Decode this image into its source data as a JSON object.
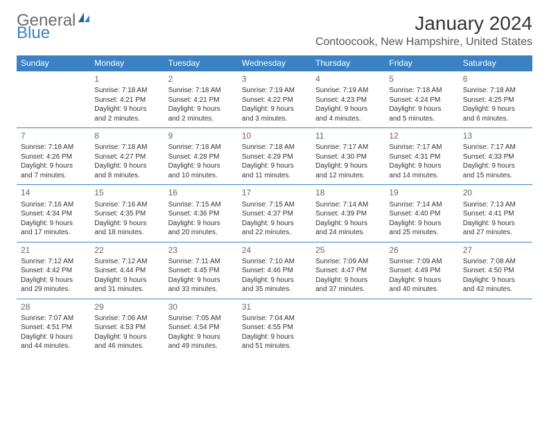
{
  "logo": {
    "word1": "General",
    "word2": "Blue"
  },
  "title": "January 2024",
  "location": "Contoocook, New Hampshire, United States",
  "colors": {
    "header_bg": "#3b82c4",
    "header_text": "#ffffff",
    "border": "#3b82c4",
    "text": "#333333"
  },
  "day_headers": [
    "Sunday",
    "Monday",
    "Tuesday",
    "Wednesday",
    "Thursday",
    "Friday",
    "Saturday"
  ],
  "weeks": [
    [
      null,
      {
        "n": "1",
        "sr": "7:18 AM",
        "ss": "4:21 PM",
        "dl": "9 hours and 2 minutes."
      },
      {
        "n": "2",
        "sr": "7:18 AM",
        "ss": "4:21 PM",
        "dl": "9 hours and 2 minutes."
      },
      {
        "n": "3",
        "sr": "7:19 AM",
        "ss": "4:22 PM",
        "dl": "9 hours and 3 minutes."
      },
      {
        "n": "4",
        "sr": "7:19 AM",
        "ss": "4:23 PM",
        "dl": "9 hours and 4 minutes."
      },
      {
        "n": "5",
        "sr": "7:18 AM",
        "ss": "4:24 PM",
        "dl": "9 hours and 5 minutes."
      },
      {
        "n": "6",
        "sr": "7:18 AM",
        "ss": "4:25 PM",
        "dl": "9 hours and 6 minutes."
      }
    ],
    [
      {
        "n": "7",
        "sr": "7:18 AM",
        "ss": "4:26 PM",
        "dl": "9 hours and 7 minutes."
      },
      {
        "n": "8",
        "sr": "7:18 AM",
        "ss": "4:27 PM",
        "dl": "9 hours and 8 minutes."
      },
      {
        "n": "9",
        "sr": "7:18 AM",
        "ss": "4:28 PM",
        "dl": "9 hours and 10 minutes."
      },
      {
        "n": "10",
        "sr": "7:18 AM",
        "ss": "4:29 PM",
        "dl": "9 hours and 11 minutes."
      },
      {
        "n": "11",
        "sr": "7:17 AM",
        "ss": "4:30 PM",
        "dl": "9 hours and 12 minutes."
      },
      {
        "n": "12",
        "sr": "7:17 AM",
        "ss": "4:31 PM",
        "dl": "9 hours and 14 minutes."
      },
      {
        "n": "13",
        "sr": "7:17 AM",
        "ss": "4:33 PM",
        "dl": "9 hours and 15 minutes."
      }
    ],
    [
      {
        "n": "14",
        "sr": "7:16 AM",
        "ss": "4:34 PM",
        "dl": "9 hours and 17 minutes."
      },
      {
        "n": "15",
        "sr": "7:16 AM",
        "ss": "4:35 PM",
        "dl": "9 hours and 18 minutes."
      },
      {
        "n": "16",
        "sr": "7:15 AM",
        "ss": "4:36 PM",
        "dl": "9 hours and 20 minutes."
      },
      {
        "n": "17",
        "sr": "7:15 AM",
        "ss": "4:37 PM",
        "dl": "9 hours and 22 minutes."
      },
      {
        "n": "18",
        "sr": "7:14 AM",
        "ss": "4:39 PM",
        "dl": "9 hours and 24 minutes."
      },
      {
        "n": "19",
        "sr": "7:14 AM",
        "ss": "4:40 PM",
        "dl": "9 hours and 25 minutes."
      },
      {
        "n": "20",
        "sr": "7:13 AM",
        "ss": "4:41 PM",
        "dl": "9 hours and 27 minutes."
      }
    ],
    [
      {
        "n": "21",
        "sr": "7:12 AM",
        "ss": "4:42 PM",
        "dl": "9 hours and 29 minutes."
      },
      {
        "n": "22",
        "sr": "7:12 AM",
        "ss": "4:44 PM",
        "dl": "9 hours and 31 minutes."
      },
      {
        "n": "23",
        "sr": "7:11 AM",
        "ss": "4:45 PM",
        "dl": "9 hours and 33 minutes."
      },
      {
        "n": "24",
        "sr": "7:10 AM",
        "ss": "4:46 PM",
        "dl": "9 hours and 35 minutes."
      },
      {
        "n": "25",
        "sr": "7:09 AM",
        "ss": "4:47 PM",
        "dl": "9 hours and 37 minutes."
      },
      {
        "n": "26",
        "sr": "7:09 AM",
        "ss": "4:49 PM",
        "dl": "9 hours and 40 minutes."
      },
      {
        "n": "27",
        "sr": "7:08 AM",
        "ss": "4:50 PM",
        "dl": "9 hours and 42 minutes."
      }
    ],
    [
      {
        "n": "28",
        "sr": "7:07 AM",
        "ss": "4:51 PM",
        "dl": "9 hours and 44 minutes."
      },
      {
        "n": "29",
        "sr": "7:06 AM",
        "ss": "4:53 PM",
        "dl": "9 hours and 46 minutes."
      },
      {
        "n": "30",
        "sr": "7:05 AM",
        "ss": "4:54 PM",
        "dl": "9 hours and 49 minutes."
      },
      {
        "n": "31",
        "sr": "7:04 AM",
        "ss": "4:55 PM",
        "dl": "9 hours and 51 minutes."
      },
      null,
      null,
      null
    ]
  ],
  "labels": {
    "sunrise": "Sunrise: ",
    "sunset": "Sunset: ",
    "daylight": "Daylight: "
  }
}
